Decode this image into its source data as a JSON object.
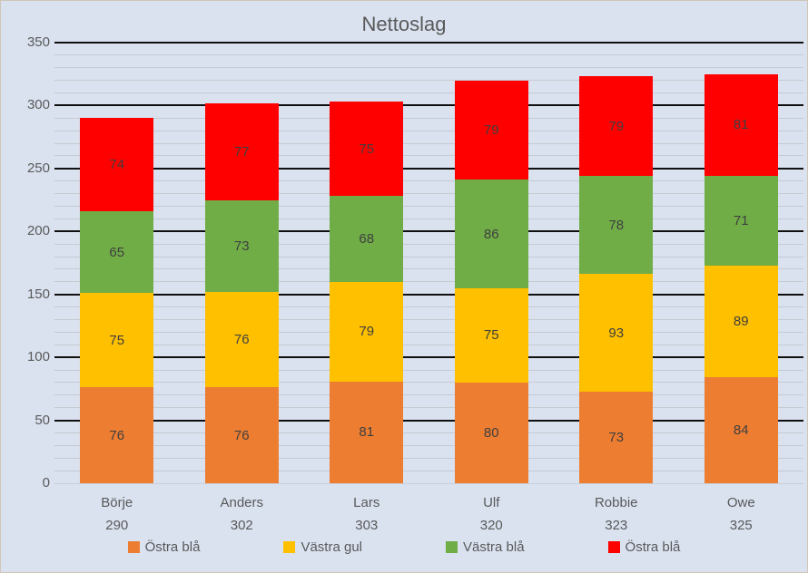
{
  "page": {
    "title": "Nettoslag"
  },
  "colors": {
    "background": "#DAE2F0",
    "border": "#CFC8B8",
    "major_gridline": "#101010",
    "minor_gridline": "#C6CAD1",
    "axis_text": "#595959",
    "title_text": "#595959",
    "data_label_text": "#3F3F3F"
  },
  "chart_data": {
    "type": "bar",
    "variant": "stacked-column",
    "title": "Nettoslag",
    "xlabel": "",
    "ylabel": "",
    "categories": [
      "Börje",
      "Anders",
      "Lars",
      "Ulf",
      "Robbie",
      "Owe"
    ],
    "category_totals": [
      "290",
      "302",
      "303",
      "320",
      "323",
      "325"
    ],
    "series": [
      {
        "name": "Östra blå",
        "color": "#ED7D31",
        "values": [
          76,
          76,
          81,
          80,
          73,
          84
        ]
      },
      {
        "name": "Västra gul",
        "color": "#FFC000",
        "values": [
          75,
          76,
          79,
          75,
          93,
          89
        ]
      },
      {
        "name": "Västra blå",
        "color": "#70AD47",
        "values": [
          65,
          73,
          68,
          86,
          78,
          71
        ]
      },
      {
        "name": "Östra blå",
        "color": "#FF0000",
        "values": [
          74,
          77,
          75,
          79,
          79,
          81
        ]
      }
    ],
    "y_axis": {
      "min": 0,
      "max": 350,
      "major_step": 50,
      "minor_step": 10,
      "tick_labels": [
        "0",
        "50",
        "100",
        "150",
        "200",
        "250",
        "300",
        "350"
      ]
    },
    "legend": {
      "position": "bottom",
      "entries": [
        {
          "label": "Östra blå",
          "color": "#ED7D31"
        },
        {
          "label": "Västra gul",
          "color": "#FFC000"
        },
        {
          "label": "Västra blå",
          "color": "#70AD47"
        },
        {
          "label": "Östra blå",
          "color": "#FF0000"
        }
      ]
    },
    "grid": {
      "major": true,
      "minor": true
    }
  }
}
